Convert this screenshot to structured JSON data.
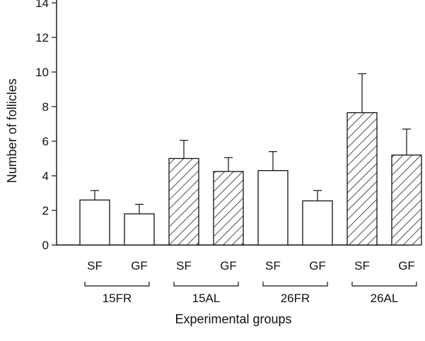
{
  "chart_data": {
    "type": "bar",
    "title": "",
    "xlabel": "Experimental groups",
    "ylabel": "Number of follicles",
    "ylim": [
      0,
      15
    ],
    "yticks": [
      0,
      2,
      4,
      6,
      8,
      10,
      12,
      14
    ],
    "grid": false,
    "legend": "none",
    "bars": [
      {
        "group": "15FR",
        "category": "SF",
        "value": 2.6,
        "error": 0.55,
        "pattern": "open"
      },
      {
        "group": "15FR",
        "category": "GF",
        "value": 1.8,
        "error": 0.55,
        "pattern": "open"
      },
      {
        "group": "15AL",
        "category": "SF",
        "value": 5.0,
        "error": 1.05,
        "pattern": "hatched"
      },
      {
        "group": "15AL",
        "category": "GF",
        "value": 4.25,
        "error": 0.8,
        "pattern": "hatched"
      },
      {
        "group": "26FR",
        "category": "SF",
        "value": 4.3,
        "error": 1.1,
        "pattern": "open"
      },
      {
        "group": "26FR",
        "category": "GF",
        "value": 2.55,
        "error": 0.6,
        "pattern": "open"
      },
      {
        "group": "26AL",
        "category": "SF",
        "value": 7.65,
        "error": 2.25,
        "pattern": "hatched"
      },
      {
        "group": "26AL",
        "category": "GF",
        "value": 5.2,
        "error": 1.5,
        "pattern": "hatched"
      }
    ],
    "groups": [
      "15FR",
      "15AL",
      "26FR",
      "26AL"
    ]
  }
}
